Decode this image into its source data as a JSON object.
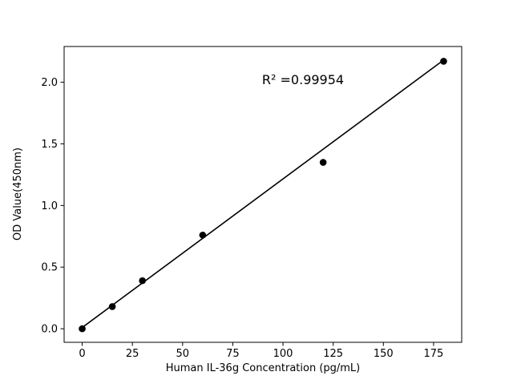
{
  "chart_data": {
    "type": "scatter",
    "title": "",
    "xlabel": "Human IL-36g Concentration (pg/mL)",
    "ylabel": "OD Value(450nm)",
    "points": {
      "x": [
        0,
        15,
        30,
        60,
        120,
        180
      ],
      "y": [
        0.0,
        0.18,
        0.39,
        0.76,
        1.35,
        2.17
      ]
    },
    "fit_line": {
      "x": [
        0,
        180
      ],
      "y": [
        0.01,
        2.18
      ]
    },
    "annotation": {
      "text": "R² =0.99954",
      "x": 110,
      "y": 2.0
    },
    "xlim": [
      -9,
      189
    ],
    "ylim": [
      -0.11,
      2.29
    ],
    "xticks": [
      "0",
      "25",
      "50",
      "75",
      "100",
      "125",
      "150",
      "175"
    ],
    "yticks": [
      "0.0",
      "0.5",
      "1.0",
      "1.5",
      "2.0"
    ],
    "grid": false,
    "legend": "none",
    "marker_color": "#000000",
    "line_color": "#000000",
    "axis_color": "#000000",
    "background": "#ffffff"
  }
}
